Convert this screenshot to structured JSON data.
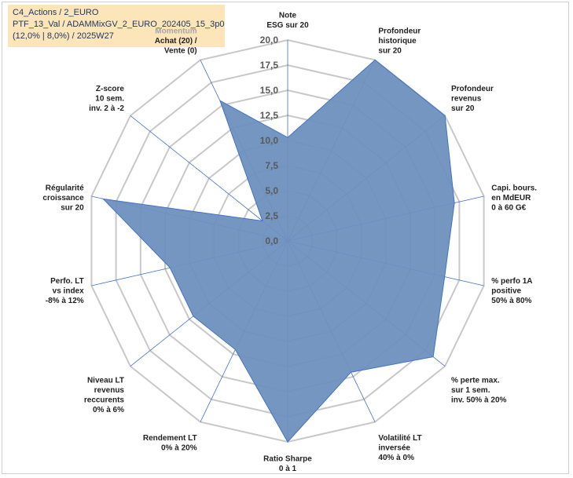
{
  "title_lines": [
    "C4_Actions / 2_EURO",
    "PTF_13_Val / ADAMMixGV_2_EURO_202405_15_3p0",
    "(12,0% | 8,0%) / 2025W27"
  ],
  "chart_data": {
    "type": "radar",
    "r_range": [
      0,
      20
    ],
    "r_ticks": [
      "0,0",
      "2,5",
      "5,0",
      "7,5",
      "10,0",
      "12,5",
      "15,0",
      "17,5",
      "20,0"
    ],
    "categories": [
      [
        "Note",
        "ESG sur 20"
      ],
      [
        "Profondeur",
        "historique",
        "sur 20"
      ],
      [
        "Profondeur",
        "revenus",
        "sur 20"
      ],
      [
        "Capi. bours.",
        "en MdEUR",
        "0 à 60 G€"
      ],
      [
        "% perfo 1A",
        "positive",
        "50% à 80%"
      ],
      [
        "% perte max.",
        "sur 1 sem.",
        "inv. 50% à 20%"
      ],
      [
        "Volatilité LT",
        "inversée",
        "40% à 0%"
      ],
      [
        "Ratio Sharpe",
        "0 à 1"
      ],
      [
        "Rendement LT",
        "0% à 20%"
      ],
      [
        "Niveau LT",
        "revenus",
        "reccurents",
        "0% à 6%"
      ],
      [
        "Perfo. LT",
        "vs index",
        "-8% à 12%"
      ],
      [
        "Régularité",
        "croissance",
        "sur 20"
      ],
      [
        "Z-score",
        "10 sem.",
        "inv. 2 à -2"
      ],
      [
        "Momentum",
        "Achat (20) /",
        "Vente (0)"
      ]
    ],
    "values": [
      10.3,
      20,
      20,
      17,
      16,
      18.5,
      14.5,
      20,
      12,
      12,
      12,
      18.8,
      3.2,
      15.5
    ],
    "grid": true,
    "legend": "none",
    "colors": {
      "fill": "#6f90bf",
      "outline": "#4472c4",
      "spoke": "#4472c4",
      "grid": "#c8c8c8",
      "muted_label": "#a6a6a6"
    }
  }
}
